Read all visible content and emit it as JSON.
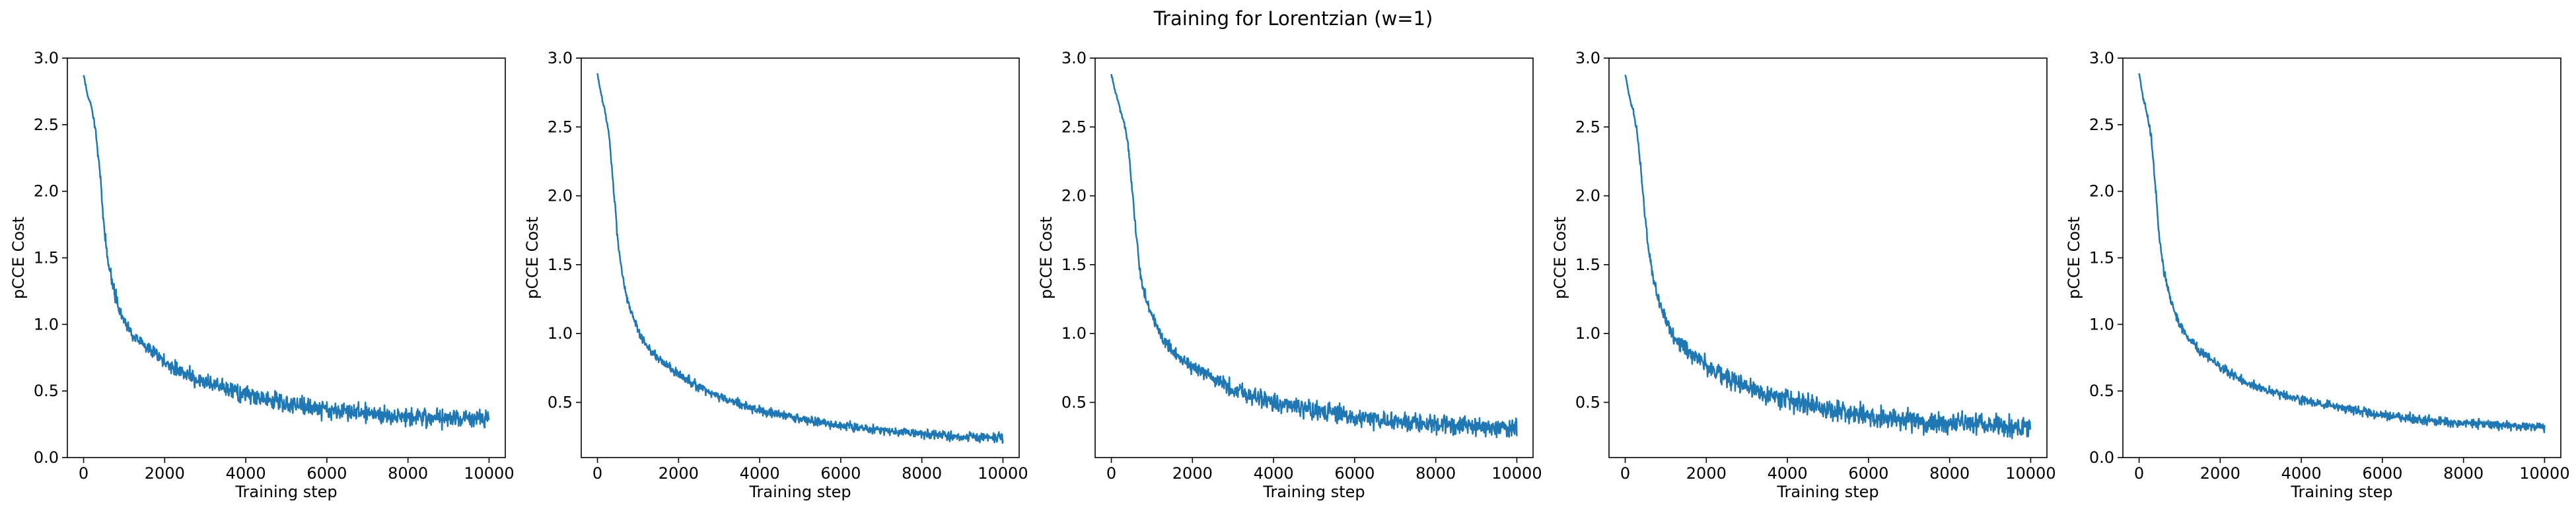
{
  "figure": {
    "suptitle": "Training for Lorentzian (w=1)",
    "line_color": "#1f77b4"
  },
  "chart_data": [
    {
      "type": "line",
      "title": "",
      "xlabel": "Training step",
      "ylabel": "pCCE Cost",
      "xlim": [
        -400,
        10400
      ],
      "ylim": [
        0.0,
        3.0
      ],
      "xticks": [
        0,
        2000,
        4000,
        6000,
        8000,
        10000
      ],
      "yticks": [
        0.0,
        0.5,
        1.0,
        1.5,
        2.0,
        2.5,
        3.0
      ],
      "ytick_labels": [
        "0.0",
        "0.5",
        "1.0",
        "1.5",
        "2.0",
        "2.5",
        "3.0"
      ],
      "grid": false,
      "series": [
        {
          "x": [
            0,
            100,
            200,
            300,
            400,
            500,
            600,
            700,
            800,
            1000,
            1200,
            1500,
            2000,
            2500,
            3000,
            4000,
            5000,
            6000,
            7000,
            8000,
            9000,
            10000
          ],
          "y": [
            2.87,
            2.72,
            2.62,
            2.45,
            2.15,
            1.75,
            1.48,
            1.33,
            1.2,
            1.03,
            0.93,
            0.83,
            0.72,
            0.63,
            0.56,
            0.47,
            0.41,
            0.36,
            0.33,
            0.31,
            0.3,
            0.29
          ],
          "noise": [
            0.02,
            0.02,
            0.03,
            0.04,
            0.05,
            0.06,
            0.07,
            0.07,
            0.07,
            0.07,
            0.07,
            0.07,
            0.08,
            0.09,
            0.09,
            0.1,
            0.1,
            0.1,
            0.1,
            0.1,
            0.1,
            0.11
          ]
        }
      ]
    },
    {
      "type": "line",
      "title": "",
      "xlabel": "Training step",
      "ylabel": "pCCE Cost",
      "xlim": [
        -400,
        10400
      ],
      "ylim": [
        0.0993,
        3.0
      ],
      "xticks": [
        0,
        2000,
        4000,
        6000,
        8000,
        10000
      ],
      "yticks": [
        0.5,
        1.0,
        1.5,
        2.0,
        2.5,
        3.0
      ],
      "ytick_labels": [
        "0.5",
        "1.0",
        "1.5",
        "2.0",
        "2.5",
        "3.0"
      ],
      "grid": false,
      "series": [
        {
          "x": [
            0,
            100,
            200,
            300,
            400,
            500,
            600,
            700,
            800,
            1000,
            1200,
            1500,
            2000,
            2500,
            3000,
            4000,
            5000,
            6000,
            7000,
            8000,
            9000,
            10000
          ],
          "y": [
            2.88,
            2.72,
            2.6,
            2.4,
            2.05,
            1.68,
            1.45,
            1.3,
            1.18,
            1.02,
            0.92,
            0.82,
            0.7,
            0.61,
            0.54,
            0.44,
            0.38,
            0.33,
            0.3,
            0.27,
            0.25,
            0.24
          ],
          "noise": [
            0.02,
            0.02,
            0.03,
            0.04,
            0.05,
            0.05,
            0.05,
            0.05,
            0.05,
            0.05,
            0.05,
            0.05,
            0.05,
            0.05,
            0.05,
            0.05,
            0.05,
            0.05,
            0.05,
            0.05,
            0.05,
            0.05
          ]
        }
      ]
    },
    {
      "type": "line",
      "title": "",
      "xlabel": "Training step",
      "ylabel": "pCCE Cost",
      "xlim": [
        -400,
        10400
      ],
      "ylim": [
        0.0993,
        3.0
      ],
      "xticks": [
        0,
        2000,
        4000,
        6000,
        8000,
        10000
      ],
      "yticks": [
        0.5,
        1.0,
        1.5,
        2.0,
        2.5,
        3.0
      ],
      "ytick_labels": [
        "0.5",
        "1.0",
        "1.5",
        "2.0",
        "2.5",
        "3.0"
      ],
      "grid": false,
      "series": [
        {
          "x": [
            0,
            100,
            200,
            300,
            400,
            500,
            600,
            700,
            800,
            1000,
            1200,
            1500,
            2000,
            2500,
            3000,
            4000,
            5000,
            6000,
            7000,
            8000,
            9000,
            10000
          ],
          "y": [
            2.88,
            2.75,
            2.65,
            2.55,
            2.4,
            2.1,
            1.75,
            1.48,
            1.3,
            1.12,
            1.0,
            0.88,
            0.76,
            0.67,
            0.6,
            0.5,
            0.44,
            0.39,
            0.36,
            0.34,
            0.32,
            0.31
          ],
          "noise": [
            0.02,
            0.02,
            0.03,
            0.04,
            0.05,
            0.06,
            0.07,
            0.07,
            0.07,
            0.07,
            0.07,
            0.08,
            0.08,
            0.09,
            0.09,
            0.1,
            0.1,
            0.1,
            0.1,
            0.1,
            0.1,
            0.1
          ]
        }
      ]
    },
    {
      "type": "line",
      "title": "",
      "xlabel": "Training step",
      "ylabel": "pCCE Cost",
      "xlim": [
        -400,
        10400
      ],
      "ylim": [
        0.0993,
        3.0
      ],
      "xticks": [
        0,
        2000,
        4000,
        6000,
        8000,
        10000
      ],
      "yticks": [
        0.5,
        1.0,
        1.5,
        2.0,
        2.5,
        3.0
      ],
      "ytick_labels": [
        "0.5",
        "1.0",
        "1.5",
        "2.0",
        "2.5",
        "3.0"
      ],
      "grid": false,
      "series": [
        {
          "x": [
            0,
            100,
            200,
            300,
            400,
            500,
            600,
            700,
            800,
            1000,
            1200,
            1500,
            2000,
            2500,
            3000,
            4000,
            5000,
            6000,
            7000,
            8000,
            9000,
            10000
          ],
          "y": [
            2.88,
            2.72,
            2.62,
            2.45,
            2.15,
            1.8,
            1.55,
            1.4,
            1.27,
            1.1,
            0.98,
            0.88,
            0.77,
            0.68,
            0.61,
            0.52,
            0.45,
            0.4,
            0.37,
            0.35,
            0.33,
            0.32
          ],
          "noise": [
            0.02,
            0.02,
            0.03,
            0.04,
            0.05,
            0.06,
            0.07,
            0.08,
            0.08,
            0.08,
            0.08,
            0.09,
            0.1,
            0.1,
            0.11,
            0.11,
            0.12,
            0.12,
            0.12,
            0.12,
            0.12,
            0.12
          ]
        }
      ]
    },
    {
      "type": "line",
      "title": "",
      "xlabel": "Training step",
      "ylabel": "pCCE Cost",
      "xlim": [
        -400,
        10400
      ],
      "ylim": [
        0.0,
        3.0
      ],
      "xticks": [
        0,
        2000,
        4000,
        6000,
        8000,
        10000
      ],
      "yticks": [
        0.0,
        0.5,
        1.0,
        1.5,
        2.0,
        2.5,
        3.0
      ],
      "ytick_labels": [
        "0.0",
        "0.5",
        "1.0",
        "1.5",
        "2.0",
        "2.5",
        "3.0"
      ],
      "grid": false,
      "series": [
        {
          "x": [
            0,
            100,
            200,
            300,
            400,
            500,
            600,
            700,
            800,
            1000,
            1200,
            1500,
            2000,
            2500,
            3000,
            4000,
            5000,
            6000,
            7000,
            8000,
            9000,
            10000
          ],
          "y": [
            2.88,
            2.7,
            2.58,
            2.4,
            2.05,
            1.65,
            1.42,
            1.28,
            1.16,
            1.0,
            0.9,
            0.8,
            0.68,
            0.59,
            0.52,
            0.43,
            0.37,
            0.32,
            0.28,
            0.26,
            0.24,
            0.23
          ],
          "noise": [
            0.02,
            0.02,
            0.03,
            0.04,
            0.05,
            0.05,
            0.05,
            0.05,
            0.05,
            0.05,
            0.05,
            0.05,
            0.05,
            0.05,
            0.05,
            0.05,
            0.05,
            0.05,
            0.05,
            0.05,
            0.05,
            0.05
          ]
        }
      ]
    }
  ]
}
